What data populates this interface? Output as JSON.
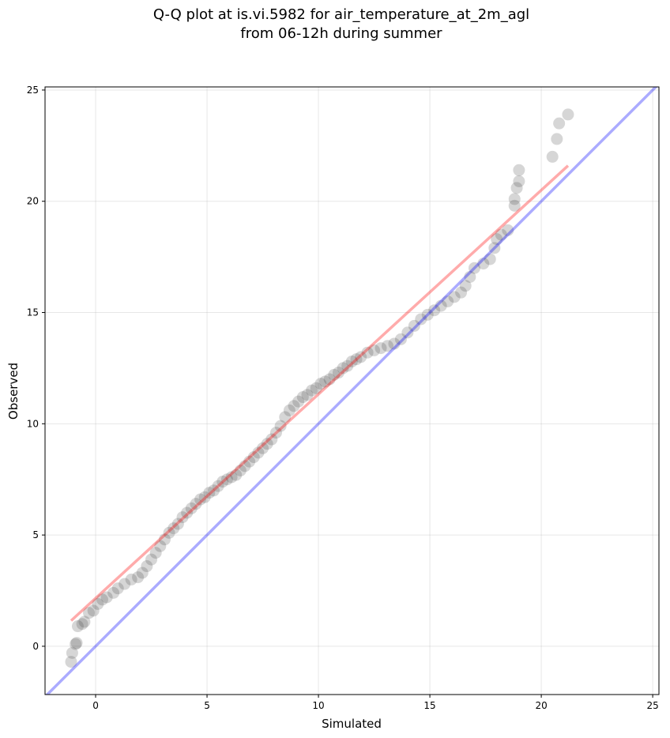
{
  "chart_data": {
    "type": "scatter",
    "title": [
      "Q-Q plot at is.vi.5982 for air_temperature_at_2m_agl",
      "from 06-12h during summer"
    ],
    "x_label": "Simulated",
    "y_label": "Observed",
    "xlim": [
      -2.27,
      25.28
    ],
    "ylim": [
      -2.17,
      25.14
    ],
    "xticks": [
      0,
      5,
      10,
      15,
      20,
      25
    ],
    "yticks": [
      0,
      5,
      10,
      15,
      20,
      25
    ],
    "grid": true,
    "point_color": "#333333",
    "point_alpha": 0.2,
    "x": [
      -1.1,
      -1.05,
      -0.9,
      -0.85,
      -0.8,
      -0.6,
      -0.5,
      -0.3,
      -0.1,
      0.1,
      0.3,
      0.5,
      0.8,
      1.0,
      1.3,
      1.6,
      1.9,
      2.1,
      2.3,
      2.5,
      2.7,
      2.9,
      3.1,
      3.3,
      3.5,
      3.7,
      3.9,
      4.1,
      4.3,
      4.5,
      4.7,
      4.9,
      5.1,
      5.3,
      5.5,
      5.7,
      5.9,
      6.1,
      6.3,
      6.5,
      6.7,
      6.9,
      7.1,
      7.3,
      7.5,
      7.7,
      7.9,
      8.1,
      8.3,
      8.5,
      8.7,
      8.9,
      9.1,
      9.3,
      9.5,
      9.7,
      9.9,
      10.1,
      10.3,
      10.5,
      10.7,
      10.9,
      11.1,
      11.3,
      11.5,
      11.7,
      11.9,
      12.2,
      12.5,
      12.8,
      13.1,
      13.4,
      13.7,
      14.0,
      14.3,
      14.6,
      14.9,
      15.2,
      15.5,
      15.8,
      16.1,
      16.4,
      16.6,
      16.8,
      17.0,
      17.4,
      17.7,
      17.9,
      18.0,
      18.2,
      18.5,
      18.8,
      18.8,
      18.9,
      19.0,
      19.0,
      20.5,
      20.7,
      20.8,
      21.2
    ],
    "y": [
      -0.7,
      -0.3,
      0.1,
      0.15,
      0.9,
      1.0,
      1.1,
      1.5,
      1.6,
      1.9,
      2.1,
      2.2,
      2.4,
      2.6,
      2.8,
      3.0,
      3.1,
      3.3,
      3.6,
      3.9,
      4.2,
      4.5,
      4.8,
      5.1,
      5.3,
      5.5,
      5.8,
      6.0,
      6.2,
      6.4,
      6.6,
      6.7,
      6.9,
      7.0,
      7.2,
      7.4,
      7.5,
      7.6,
      7.7,
      7.9,
      8.1,
      8.3,
      8.5,
      8.7,
      8.9,
      9.1,
      9.3,
      9.6,
      9.9,
      10.3,
      10.6,
      10.8,
      11.0,
      11.2,
      11.3,
      11.5,
      11.6,
      11.8,
      11.9,
      12.0,
      12.2,
      12.3,
      12.5,
      12.6,
      12.8,
      12.9,
      13.0,
      13.2,
      13.3,
      13.4,
      13.5,
      13.6,
      13.8,
      14.1,
      14.4,
      14.7,
      14.9,
      15.1,
      15.3,
      15.5,
      15.7,
      15.9,
      16.2,
      16.6,
      17.0,
      17.2,
      17.4,
      17.9,
      18.3,
      18.5,
      18.7,
      19.8,
      20.1,
      20.6,
      20.9,
      21.4,
      22.0,
      22.8,
      23.5,
      23.9
    ],
    "fit_line": {
      "x": [
        -1.1,
        21.2
      ],
      "y": [
        1.15,
        21.6
      ],
      "color": "#ff0000",
      "alpha": 0.33
    },
    "identity_line": {
      "color": "#0000ff",
      "alpha": 0.33
    }
  }
}
